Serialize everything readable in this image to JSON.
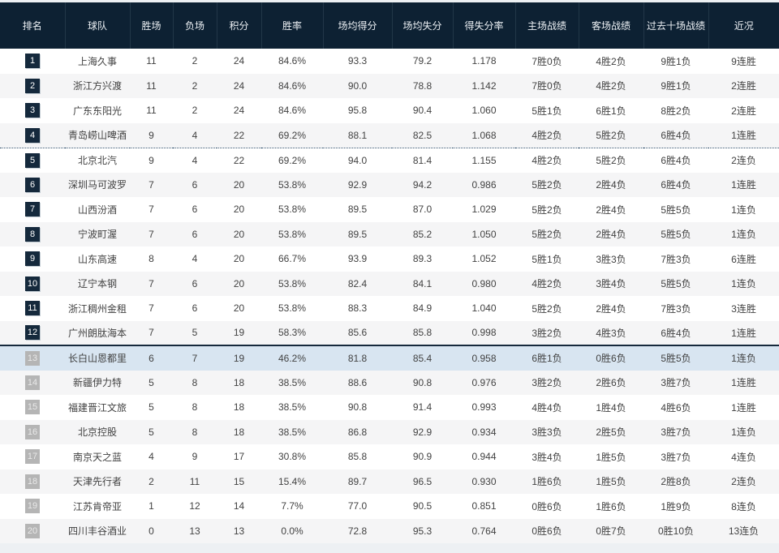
{
  "colors": {
    "header_bg": "#0d2133",
    "header_divider": "#223748",
    "header_text": "#edf1f5",
    "row_odd": "#ffffff",
    "row_even": "#f5f5f6",
    "row_highlight": "#d8e5f1",
    "badge_top_bg": "#15293c",
    "badge_top_text": "#ffffff",
    "badge_low_bg": "#b5b5b5",
    "badge_low_text": "#e9e9e9",
    "body_text": "#424242",
    "cutoff_dashed_line": "#33526e",
    "cutoff_solid_line": "#16293c"
  },
  "table": {
    "columns": [
      {
        "key": "rank",
        "label": "排名"
      },
      {
        "key": "team",
        "label": "球队"
      },
      {
        "key": "wins",
        "label": "胜场"
      },
      {
        "key": "losses",
        "label": "负场"
      },
      {
        "key": "points",
        "label": "积分"
      },
      {
        "key": "win_rate",
        "label": "胜率"
      },
      {
        "key": "avg_points_for",
        "label": "场均得分"
      },
      {
        "key": "avg_points_against",
        "label": "场均失分"
      },
      {
        "key": "points_ratio",
        "label": "得失分率"
      },
      {
        "key": "home_record",
        "label": "主场战绩"
      },
      {
        "key": "away_record",
        "label": "客场战绩"
      },
      {
        "key": "last_ten_record",
        "label": "过去十场战绩"
      },
      {
        "key": "streak",
        "label": "近况"
      }
    ],
    "rows": [
      {
        "rank": 1,
        "team": "上海久事",
        "wins": 11,
        "losses": 2,
        "points": 24,
        "win_rate": "84.6%",
        "avg_points_for": "93.3",
        "avg_points_against": "79.2",
        "points_ratio": "1.178",
        "home_record": "7胜0负",
        "away_record": "4胜2负",
        "last_ten_record": "9胜1负",
        "streak": "9连胜",
        "highlighted": false,
        "separator_after": ""
      },
      {
        "rank": 2,
        "team": "浙江方兴渡",
        "wins": 11,
        "losses": 2,
        "points": 24,
        "win_rate": "84.6%",
        "avg_points_for": "90.0",
        "avg_points_against": "78.8",
        "points_ratio": "1.142",
        "home_record": "7胜0负",
        "away_record": "4胜2负",
        "last_ten_record": "9胜1负",
        "streak": "2连胜",
        "highlighted": false,
        "separator_after": ""
      },
      {
        "rank": 3,
        "team": "广东东阳光",
        "wins": 11,
        "losses": 2,
        "points": 24,
        "win_rate": "84.6%",
        "avg_points_for": "95.8",
        "avg_points_against": "90.4",
        "points_ratio": "1.060",
        "home_record": "5胜1负",
        "away_record": "6胜1负",
        "last_ten_record": "8胜2负",
        "streak": "2连胜",
        "highlighted": false,
        "separator_after": ""
      },
      {
        "rank": 4,
        "team": "青岛崂山啤酒",
        "wins": 9,
        "losses": 4,
        "points": 22,
        "win_rate": "69.2%",
        "avg_points_for": "88.1",
        "avg_points_against": "82.5",
        "points_ratio": "1.068",
        "home_record": "4胜2负",
        "away_record": "5胜2负",
        "last_ten_record": "6胜4负",
        "streak": "1连胜",
        "highlighted": false,
        "separator_after": "dashed"
      },
      {
        "rank": 5,
        "team": "北京北汽",
        "wins": 9,
        "losses": 4,
        "points": 22,
        "win_rate": "69.2%",
        "avg_points_for": "94.0",
        "avg_points_against": "81.4",
        "points_ratio": "1.155",
        "home_record": "4胜2负",
        "away_record": "5胜2负",
        "last_ten_record": "6胜4负",
        "streak": "2连负",
        "highlighted": false,
        "separator_after": ""
      },
      {
        "rank": 6,
        "team": "深圳马可波罗",
        "wins": 7,
        "losses": 6,
        "points": 20,
        "win_rate": "53.8%",
        "avg_points_for": "92.9",
        "avg_points_against": "94.2",
        "points_ratio": "0.986",
        "home_record": "5胜2负",
        "away_record": "2胜4负",
        "last_ten_record": "6胜4负",
        "streak": "1连胜",
        "highlighted": false,
        "separator_after": ""
      },
      {
        "rank": 7,
        "team": "山西汾酒",
        "wins": 7,
        "losses": 6,
        "points": 20,
        "win_rate": "53.8%",
        "avg_points_for": "89.5",
        "avg_points_against": "87.0",
        "points_ratio": "1.029",
        "home_record": "5胜2负",
        "away_record": "2胜4负",
        "last_ten_record": "5胜5负",
        "streak": "1连负",
        "highlighted": false,
        "separator_after": ""
      },
      {
        "rank": 8,
        "team": "宁波町渥",
        "wins": 7,
        "losses": 6,
        "points": 20,
        "win_rate": "53.8%",
        "avg_points_for": "89.5",
        "avg_points_against": "85.2",
        "points_ratio": "1.050",
        "home_record": "5胜2负",
        "away_record": "2胜4负",
        "last_ten_record": "5胜5负",
        "streak": "1连负",
        "highlighted": false,
        "separator_after": ""
      },
      {
        "rank": 9,
        "team": "山东高速",
        "wins": 8,
        "losses": 4,
        "points": 20,
        "win_rate": "66.7%",
        "avg_points_for": "93.9",
        "avg_points_against": "89.3",
        "points_ratio": "1.052",
        "home_record": "5胜1负",
        "away_record": "3胜3负",
        "last_ten_record": "7胜3负",
        "streak": "6连胜",
        "highlighted": false,
        "separator_after": ""
      },
      {
        "rank": 10,
        "team": "辽宁本钢",
        "wins": 7,
        "losses": 6,
        "points": 20,
        "win_rate": "53.8%",
        "avg_points_for": "82.4",
        "avg_points_against": "84.1",
        "points_ratio": "0.980",
        "home_record": "4胜2负",
        "away_record": "3胜4负",
        "last_ten_record": "5胜5负",
        "streak": "1连负",
        "highlighted": false,
        "separator_after": ""
      },
      {
        "rank": 11,
        "team": "浙江稠州金租",
        "wins": 7,
        "losses": 6,
        "points": 20,
        "win_rate": "53.8%",
        "avg_points_for": "88.3",
        "avg_points_against": "84.9",
        "points_ratio": "1.040",
        "home_record": "5胜2负",
        "away_record": "2胜4负",
        "last_ten_record": "7胜3负",
        "streak": "3连胜",
        "highlighted": false,
        "separator_after": ""
      },
      {
        "rank": 12,
        "team": "广州朗肽海本",
        "wins": 7,
        "losses": 5,
        "points": 19,
        "win_rate": "58.3%",
        "avg_points_for": "85.6",
        "avg_points_against": "85.8",
        "points_ratio": "0.998",
        "home_record": "3胜2负",
        "away_record": "4胜3负",
        "last_ten_record": "6胜4负",
        "streak": "1连胜",
        "highlighted": false,
        "separator_after": "solid"
      },
      {
        "rank": 13,
        "team": "长白山恩都里",
        "wins": 6,
        "losses": 7,
        "points": 19,
        "win_rate": "46.2%",
        "avg_points_for": "81.8",
        "avg_points_against": "85.4",
        "points_ratio": "0.958",
        "home_record": "6胜1负",
        "away_record": "0胜6负",
        "last_ten_record": "5胜5负",
        "streak": "1连负",
        "highlighted": true,
        "separator_after": ""
      },
      {
        "rank": 14,
        "team": "新疆伊力特",
        "wins": 5,
        "losses": 8,
        "points": 18,
        "win_rate": "38.5%",
        "avg_points_for": "88.6",
        "avg_points_against": "90.8",
        "points_ratio": "0.976",
        "home_record": "3胜2负",
        "away_record": "2胜6负",
        "last_ten_record": "3胜7负",
        "streak": "1连胜",
        "highlighted": false,
        "separator_after": ""
      },
      {
        "rank": 15,
        "team": "福建晋江文旅",
        "wins": 5,
        "losses": 8,
        "points": 18,
        "win_rate": "38.5%",
        "avg_points_for": "90.8",
        "avg_points_against": "91.4",
        "points_ratio": "0.993",
        "home_record": "4胜4负",
        "away_record": "1胜4负",
        "last_ten_record": "4胜6负",
        "streak": "1连胜",
        "highlighted": false,
        "separator_after": ""
      },
      {
        "rank": 16,
        "team": "北京控股",
        "wins": 5,
        "losses": 8,
        "points": 18,
        "win_rate": "38.5%",
        "avg_points_for": "86.8",
        "avg_points_against": "92.9",
        "points_ratio": "0.934",
        "home_record": "3胜3负",
        "away_record": "2胜5负",
        "last_ten_record": "3胜7负",
        "streak": "1连负",
        "highlighted": false,
        "separator_after": ""
      },
      {
        "rank": 17,
        "team": "南京天之蓝",
        "wins": 4,
        "losses": 9,
        "points": 17,
        "win_rate": "30.8%",
        "avg_points_for": "85.8",
        "avg_points_against": "90.9",
        "points_ratio": "0.944",
        "home_record": "3胜4负",
        "away_record": "1胜5负",
        "last_ten_record": "3胜7负",
        "streak": "4连负",
        "highlighted": false,
        "separator_after": ""
      },
      {
        "rank": 18,
        "team": "天津先行者",
        "wins": 2,
        "losses": 11,
        "points": 15,
        "win_rate": "15.4%",
        "avg_points_for": "89.7",
        "avg_points_against": "96.5",
        "points_ratio": "0.930",
        "home_record": "1胜6负",
        "away_record": "1胜5负",
        "last_ten_record": "2胜8负",
        "streak": "2连负",
        "highlighted": false,
        "separator_after": ""
      },
      {
        "rank": 19,
        "team": "江苏肯帝亚",
        "wins": 1,
        "losses": 12,
        "points": 14,
        "win_rate": "7.7%",
        "avg_points_for": "77.0",
        "avg_points_against": "90.5",
        "points_ratio": "0.851",
        "home_record": "0胜6负",
        "away_record": "1胜6负",
        "last_ten_record": "1胜9负",
        "streak": "8连负",
        "highlighted": false,
        "separator_after": ""
      },
      {
        "rank": 20,
        "team": "四川丰谷酒业",
        "wins": 0,
        "losses": 13,
        "points": 13,
        "win_rate": "0.0%",
        "avg_points_for": "72.8",
        "avg_points_against": "95.3",
        "points_ratio": "0.764",
        "home_record": "0胜6负",
        "away_record": "0胜7负",
        "last_ten_record": "0胜10负",
        "streak": "13连负",
        "highlighted": false,
        "separator_after": ""
      }
    ]
  }
}
